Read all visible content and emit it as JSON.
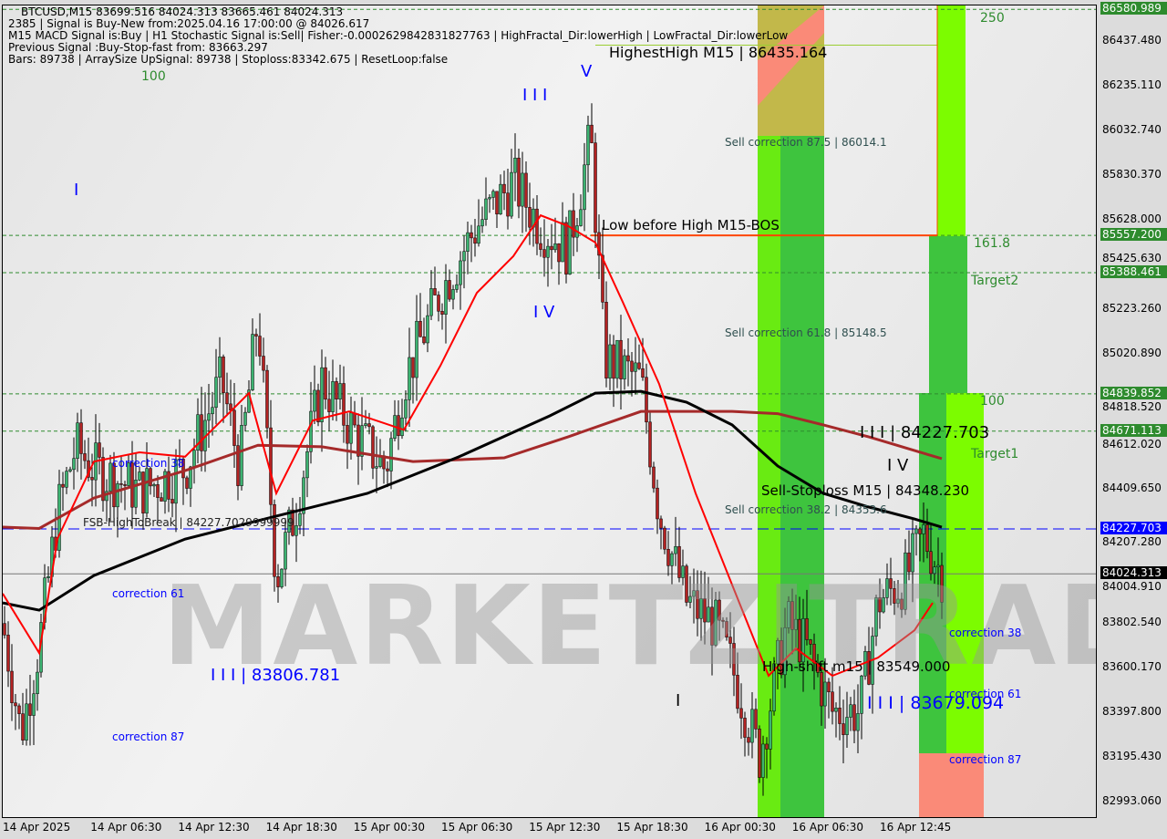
{
  "info": {
    "line1": "BTCUSD,M15  83699.516 84024.313 83665.461 84024.313",
    "line2": "2385 | Signal is Buy-New from:2025.04.16 17:00:00 @ 84026.617",
    "line3": "M15 MACD Signal is:Buy | H1 Stochastic Signal is:Sell| Fisher:-0.0002629842831827763 | HighFractal_Dir:lowerHigh | LowFractal_Dir:lowerLow",
    "line4": "Previous Signal :Buy-Stop-fast from: 83663.297",
    "line5": "Bars: 89738 | ArraySize UpSignal: 89738 | Stoploss:83342.675 | ResetLoop:false"
  },
  "watermark": "MARKETZITRADE",
  "price_axis": {
    "ticks": [
      "86437.480",
      "86235.110",
      "86032.740",
      "85830.370",
      "85628.000",
      "85425.630",
      "85223.260",
      "85020.890",
      "84818.520",
      "84612.020",
      "84409.650",
      "84207.280",
      "84004.910",
      "83802.540",
      "83600.170",
      "83397.800",
      "83195.430",
      "82993.060"
    ],
    "tags": [
      {
        "value": "86580.989",
        "color": "#2e8b2e"
      },
      {
        "value": "85557.200",
        "color": "#2e8b2e"
      },
      {
        "value": "85388.461",
        "color": "#2e8b2e"
      },
      {
        "value": "84839.852",
        "color": "#2e8b2e"
      },
      {
        "value": "84671.113",
        "color": "#2e8b2e"
      },
      {
        "value": "84227.703",
        "color": "#0000ff"
      },
      {
        "value": "84024.313",
        "color": "#000000"
      }
    ]
  },
  "time_axis": [
    "14 Apr 2025",
    "14 Apr 06:30",
    "14 Apr 12:30",
    "14 Apr 18:30",
    "15 Apr 00:30",
    "15 Apr 06:30",
    "15 Apr 12:30",
    "15 Apr 18:30",
    "16 Apr 00:30",
    "16 Apr 06:30",
    "16 Apr 12:45"
  ],
  "labels": {
    "highest_high": "HighestHigh   M15 | 86435.164",
    "low_before_high": "Low before High   M15-BOS",
    "sell_corr_875": "Sell correction 87.5 | 86014.1",
    "sell_corr_618": "Sell correction 61.8 | 85148.5",
    "sell_corr_382": "Sell correction 38.2 | 84353.6",
    "sell_stoploss": "Sell-Stoploss M15 | 84348.230",
    "wave_iii_top": "I I I | 84227.703",
    "wave_iv": "I V",
    "high_shift": "High-shift m15 | 83549.000",
    "wave_iii_low": "I I I | 83679.094",
    "wave_iii_left": "I I I | 83806.781",
    "fsb": "FSB-HighToBreak | 84227.7029999999",
    "corr38_left": "correction 38",
    "corr61_left": "correction 61",
    "corr87_left": "correction 87",
    "corr38_right": "correction 38",
    "corr61_right": "correction 61",
    "corr87_right": "correction 87",
    "fib_250": "250",
    "fib_1618": "161.8",
    "fib_100": "100",
    "fib_100_left": "100",
    "target1": "Target1",
    "target2": "Target2",
    "wave_I_left": "I",
    "wave_III": "I I I",
    "wave_IV_mid": "I V",
    "wave_V": "V",
    "wave_I_low": "I"
  },
  "chart_data": {
    "type": "candlestick",
    "symbol": "BTCUSD",
    "timeframe": "M15",
    "ylim": [
      82900,
      86620
    ],
    "price_path": [
      [
        0,
        83800
      ],
      [
        20,
        83300
      ],
      [
        40,
        83700
      ],
      [
        60,
        84300
      ],
      [
        80,
        84600
      ],
      [
        100,
        84500
      ],
      [
        150,
        84400
      ],
      [
        200,
        84500
      ],
      [
        240,
        84900
      ],
      [
        260,
        84500
      ],
      [
        280,
        85200
      ],
      [
        300,
        84000
      ],
      [
        320,
        84300
      ],
      [
        350,
        84900
      ],
      [
        380,
        84700
      ],
      [
        420,
        84500
      ],
      [
        440,
        84900
      ],
      [
        480,
        85300
      ],
      [
        520,
        85600
      ],
      [
        560,
        85800
      ],
      [
        590,
        85600
      ],
      [
        620,
        85500
      ],
      [
        645,
        86000
      ],
      [
        660,
        85000
      ],
      [
        700,
        84900
      ],
      [
        720,
        84300
      ],
      [
        750,
        83900
      ],
      [
        780,
        83800
      ],
      [
        800,
        83600
      ],
      [
        830,
        83200
      ],
      [
        860,
        83800
      ],
      [
        880,
        83700
      ],
      [
        910,
        83400
      ],
      [
        940,
        83400
      ],
      [
        960,
        83900
      ],
      [
        990,
        84000
      ],
      [
        1010,
        84200
      ],
      [
        1030,
        84024
      ]
    ],
    "ma_black": [
      [
        0,
        83893
      ],
      [
        40,
        83860
      ],
      [
        100,
        84017
      ],
      [
        200,
        84182
      ],
      [
        300,
        84286
      ],
      [
        400,
        84389
      ],
      [
        500,
        84554
      ],
      [
        600,
        84740
      ],
      [
        650,
        84843
      ],
      [
        700,
        84851
      ],
      [
        750,
        84802
      ],
      [
        800,
        84699
      ],
      [
        850,
        84513
      ],
      [
        900,
        84389
      ],
      [
        950,
        84327
      ],
      [
        1000,
        84273
      ],
      [
        1030,
        84236
      ]
    ],
    "ma_brown": [
      [
        0,
        84236
      ],
      [
        40,
        84230
      ],
      [
        100,
        84368
      ],
      [
        200,
        84492
      ],
      [
        280,
        84607
      ],
      [
        350,
        84600
      ],
      [
        450,
        84533
      ],
      [
        550,
        84550
      ],
      [
        620,
        84645
      ],
      [
        700,
        84760
      ],
      [
        800,
        84760
      ],
      [
        850,
        84750
      ],
      [
        900,
        84699
      ],
      [
        950,
        84645
      ],
      [
        1030,
        84546
      ]
    ],
    "ma_red": [
      [
        0,
        83935
      ],
      [
        40,
        83666
      ],
      [
        60,
        84183
      ],
      [
        100,
        84533
      ],
      [
        150,
        84575
      ],
      [
        200,
        84555
      ],
      [
        240,
        84719
      ],
      [
        270,
        84843
      ],
      [
        300,
        84389
      ],
      [
        340,
        84719
      ],
      [
        380,
        84760
      ],
      [
        440,
        84677
      ],
      [
        480,
        84967
      ],
      [
        520,
        85297
      ],
      [
        560,
        85463
      ],
      [
        590,
        85648
      ],
      [
        620,
        85600
      ],
      [
        650,
        85525
      ],
      [
        680,
        85256
      ],
      [
        720,
        84884
      ],
      [
        760,
        84389
      ],
      [
        800,
        83975
      ],
      [
        840,
        83563
      ],
      [
        870,
        83687
      ],
      [
        910,
        83563
      ],
      [
        960,
        83645
      ],
      [
        1000,
        83769
      ],
      [
        1020,
        83893
      ]
    ],
    "levels": {
      "green_dashed": [
        86580.989,
        85557.2,
        85388.461,
        84839.852,
        84671.113
      ],
      "blue_dashed": 84227.703,
      "current": 84024.313
    },
    "colors": {
      "bull": "#3cb371",
      "bear": "#b22222",
      "zone_green": "#3ec43e",
      "zone_lime": "#7cfc00",
      "zone_salmon": "#fa8a78",
      "ma_black": "#000000",
      "ma_brown": "#a52a2a",
      "ma_red": "#ff0000"
    }
  }
}
